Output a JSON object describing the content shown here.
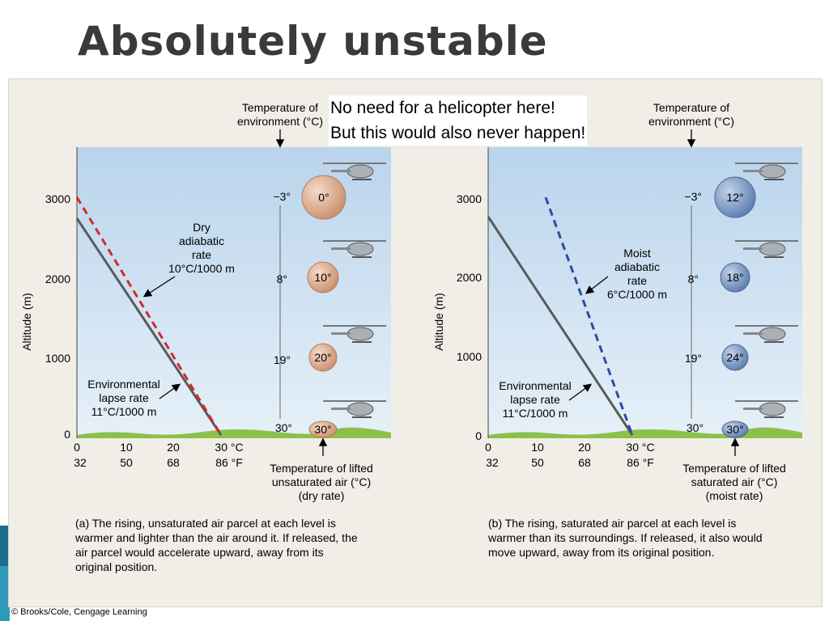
{
  "slide": {
    "title": "Absolutely unstable",
    "note_line1": "No need for a helicopter here!",
    "note_line2": "But this would also never happen!",
    "copyright": "© Brooks/Cole, Cengage Learning"
  },
  "shared": {
    "y_axis_label": "Altitude (m)",
    "y_ticks": [
      "3000",
      "2000",
      "1000",
      "0"
    ],
    "x_ticks_c": [
      "0",
      "10",
      "20",
      "30 °C"
    ],
    "x_ticks_f": [
      "32",
      "50",
      "68",
      "86 °F"
    ],
    "env_temp_label_line1": "Temperature of",
    "env_temp_label_line2": "environment (°C)",
    "env_temps": [
      "−3°",
      "8°",
      "19°",
      "30°"
    ],
    "env_lapse_line1": "Environmental",
    "env_lapse_line2": "lapse rate",
    "env_lapse_line3": "11°C/1000 m"
  },
  "panel_a": {
    "rate_line1": "Dry",
    "rate_line2": "adiabatic",
    "rate_line3": "rate",
    "rate_line4": "10°C/1000 m",
    "parcel_temps": [
      "0°",
      "10°",
      "20°",
      "30°"
    ],
    "lifted_line1": "Temperature of lifted",
    "lifted_line2": "unsaturated air (°C)",
    "lifted_line3": "(dry rate)",
    "caption_line1": "(a) The rising, unsaturated air parcel at each level is",
    "caption_line2": "warmer and lighter than the air around it.  If released, the",
    "caption_line3": "air parcel would accelerate upward, away from its",
    "caption_line4": "original position.",
    "colors": {
      "parcel": "#d9a88a",
      "dashed_line": "#d42a2a"
    }
  },
  "panel_b": {
    "rate_line1": "Moist",
    "rate_line2": "adiabatic",
    "rate_line3": "rate",
    "rate_line4": "6°C/1000 m",
    "parcel_temps": [
      "12°",
      "18°",
      "24°",
      "30°"
    ],
    "lifted_line1": "Temperature of lifted",
    "lifted_line2": "saturated air (°C)",
    "lifted_line3": "(moist rate)",
    "caption_line1": "(b) The rising, saturated air parcel at each level is",
    "caption_line2": "warmer than its surroundings.  If released, it also would",
    "caption_line3": "move upward, away from its original position.",
    "colors": {
      "parcel": "#7f9ac4",
      "dashed_line": "#2f49a6"
    }
  }
}
